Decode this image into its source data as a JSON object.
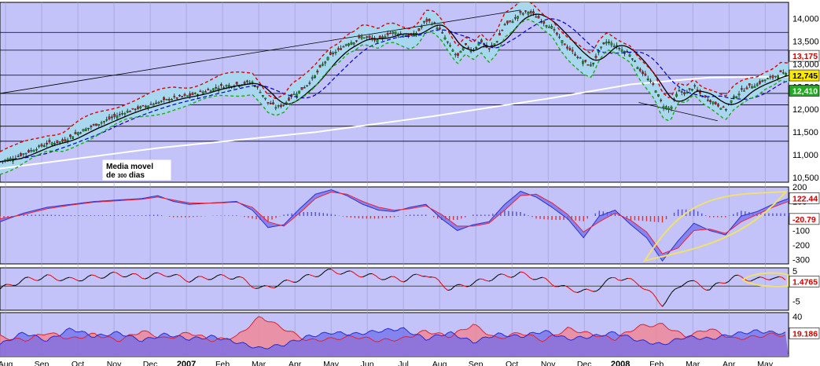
{
  "chart_data": [
    {
      "type": "line",
      "panel": "price",
      "y_axis_side": "right",
      "ylim": [
        10400,
        14350
      ],
      "y_ticks": [
        "14,000",
        "13,500",
        "13,000",
        "12,500",
        "12,000",
        "11,500",
        "11,000",
        "10,500"
      ],
      "y_tick_values": [
        14000,
        13500,
        13000,
        12500,
        12000,
        11500,
        11000,
        10500
      ],
      "months": [
        "Aug",
        "Sep",
        "Oct",
        "Nov",
        "Dec",
        "2007",
        "Feb",
        "Mar",
        "Apr",
        "May",
        "Jun",
        "Jul",
        "Aug",
        "Sep",
        "Oct",
        "Nov",
        "Dec",
        "2008",
        "Feb",
        "Mar",
        "Apr",
        "May"
      ],
      "horizontal_levels": [
        13690,
        13300,
        12750,
        12350,
        12100,
        11630,
        11300
      ],
      "trendline_black": {
        "start": [
          0,
          12350
        ],
        "end": [
          66,
          14180
        ]
      },
      "price_close": [
        [
          0,
          10850
        ],
        [
          2,
          10950
        ],
        [
          4,
          11100
        ],
        [
          6,
          11250
        ],
        [
          8,
          11300
        ],
        [
          10,
          11500
        ],
        [
          12,
          11650
        ],
        [
          14,
          11800
        ],
        [
          16,
          11950
        ],
        [
          18,
          12050
        ],
        [
          20,
          12150
        ],
        [
          22,
          12250
        ],
        [
          24,
          12300
        ],
        [
          26,
          12400
        ],
        [
          28,
          12500
        ],
        [
          30,
          12550
        ],
        [
          32,
          12600
        ],
        [
          33,
          12400
        ],
        [
          34,
          12150
        ],
        [
          35,
          12050
        ],
        [
          36,
          12100
        ],
        [
          37,
          12300
        ],
        [
          38,
          12400
        ],
        [
          39,
          12550
        ],
        [
          40,
          12750
        ],
        [
          41,
          13000
        ],
        [
          42,
          13200
        ],
        [
          43,
          13300
        ],
        [
          44,
          13450
        ],
        [
          45,
          13500
        ],
        [
          46,
          13600
        ],
        [
          47,
          13550
        ],
        [
          48,
          13500
        ],
        [
          49,
          13650
        ],
        [
          50,
          13700
        ],
        [
          51,
          13650
        ],
        [
          52,
          13600
        ],
        [
          53,
          13700
        ],
        [
          54,
          13950
        ],
        [
          55,
          13900
        ],
        [
          56,
          13700
        ],
        [
          57,
          13400
        ],
        [
          58,
          13150
        ],
        [
          59,
          13400
        ],
        [
          60,
          13300
        ],
        [
          61,
          13500
        ],
        [
          62,
          13300
        ],
        [
          63,
          13500
        ],
        [
          64,
          13850
        ],
        [
          65,
          13950
        ],
        [
          66,
          14100
        ],
        [
          67,
          14150
        ],
        [
          68,
          14050
        ],
        [
          69,
          13900
        ],
        [
          70,
          13800
        ],
        [
          71,
          13550
        ],
        [
          72,
          13350
        ],
        [
          73,
          13200
        ],
        [
          74,
          13050
        ],
        [
          75,
          12950
        ],
        [
          76,
          13300
        ],
        [
          77,
          13500
        ],
        [
          78,
          13400
        ],
        [
          79,
          13300
        ],
        [
          80,
          13200
        ],
        [
          81,
          12900
        ],
        [
          82,
          12700
        ],
        [
          83,
          12500
        ],
        [
          84,
          12100
        ],
        [
          85,
          12000
        ],
        [
          86,
          12400
        ],
        [
          87,
          12350
        ],
        [
          88,
          12500
        ],
        [
          89,
          12300
        ],
        [
          90,
          12200
        ],
        [
          91,
          12100
        ],
        [
          92,
          12000
        ],
        [
          93,
          12250
        ],
        [
          94,
          12400
        ],
        [
          95,
          12500
        ],
        [
          96,
          12550
        ],
        [
          97,
          12650
        ],
        [
          98,
          12700
        ],
        [
          99,
          12800
        ],
        [
          100,
          12750
        ]
      ],
      "series_names": [],
      "sma_200_label": "Media movel de 300 dias",
      "badges": [
        {
          "text": "13,175",
          "value": 13175,
          "color": "#d40000",
          "bg": "#ffffff"
        },
        {
          "text": "12,745",
          "value": 12745,
          "color": "#000000",
          "bg": "#ffe800"
        },
        {
          "text": "12,410",
          "value": 12410,
          "color": "#ffffff",
          "bg": "#22aa22"
        }
      ],
      "colors": {
        "background": "#c3c3f9",
        "band_fill": "#a9d7f0",
        "upper_band": "#e00000",
        "lower_band": "#1aaa1a",
        "sma_fast": "#000000",
        "sma_medium": "#0000cc",
        "sma_long": "#ffffff"
      }
    },
    {
      "type": "area",
      "panel": "macd",
      "y_axis_side": "right",
      "ylim": [
        -330,
        200
      ],
      "y_ticks": [
        "200",
        "100",
        "-100",
        "-200",
        "-300"
      ],
      "y_tick_values": [
        200,
        100,
        -100,
        -200,
        -300
      ],
      "badges": [
        {
          "text": "122.44",
          "value": 122.44,
          "color": "#d40000",
          "bg": "#ffffff"
        },
        {
          "text": "-20.79",
          "value": -20.79,
          "color": "#d40000",
          "bg": "#ffffff"
        }
      ],
      "macd_line": [
        [
          0,
          -40
        ],
        [
          3,
          20
        ],
        [
          6,
          60
        ],
        [
          9,
          80
        ],
        [
          12,
          100
        ],
        [
          15,
          110
        ],
        [
          18,
          120
        ],
        [
          20,
          140
        ],
        [
          22,
          100
        ],
        [
          24,
          80
        ],
        [
          27,
          90
        ],
        [
          30,
          100
        ],
        [
          32,
          40
        ],
        [
          34,
          -80
        ],
        [
          36,
          -60
        ],
        [
          38,
          50
        ],
        [
          40,
          150
        ],
        [
          42,
          180
        ],
        [
          44,
          140
        ],
        [
          46,
          80
        ],
        [
          48,
          40
        ],
        [
          50,
          30
        ],
        [
          52,
          60
        ],
        [
          54,
          80
        ],
        [
          56,
          -20
        ],
        [
          58,
          -100
        ],
        [
          60,
          -60
        ],
        [
          62,
          -40
        ],
        [
          64,
          80
        ],
        [
          66,
          170
        ],
        [
          68,
          130
        ],
        [
          70,
          60
        ],
        [
          72,
          -20
        ],
        [
          74,
          -150
        ],
        [
          76,
          0
        ],
        [
          78,
          40
        ],
        [
          80,
          -60
        ],
        [
          82,
          -150
        ],
        [
          84,
          -310
        ],
        [
          86,
          -170
        ],
        [
          88,
          -50
        ],
        [
          90,
          -100
        ],
        [
          92,
          -130
        ],
        [
          94,
          0
        ],
        [
          96,
          30
        ],
        [
          98,
          80
        ],
        [
          100,
          120
        ]
      ],
      "signal_line": [
        [
          0,
          -20
        ],
        [
          3,
          10
        ],
        [
          6,
          50
        ],
        [
          9,
          75
        ],
        [
          12,
          95
        ],
        [
          15,
          105
        ],
        [
          18,
          115
        ],
        [
          20,
          130
        ],
        [
          22,
          110
        ],
        [
          24,
          90
        ],
        [
          27,
          88
        ],
        [
          30,
          95
        ],
        [
          32,
          60
        ],
        [
          34,
          -40
        ],
        [
          36,
          -70
        ],
        [
          38,
          20
        ],
        [
          40,
          120
        ],
        [
          42,
          165
        ],
        [
          44,
          150
        ],
        [
          46,
          100
        ],
        [
          48,
          60
        ],
        [
          50,
          40
        ],
        [
          52,
          50
        ],
        [
          54,
          70
        ],
        [
          56,
          10
        ],
        [
          58,
          -70
        ],
        [
          60,
          -70
        ],
        [
          62,
          -50
        ],
        [
          64,
          40
        ],
        [
          66,
          140
        ],
        [
          68,
          150
        ],
        [
          70,
          90
        ],
        [
          72,
          10
        ],
        [
          74,
          -110
        ],
        [
          76,
          -40
        ],
        [
          78,
          20
        ],
        [
          80,
          -30
        ],
        [
          82,
          -110
        ],
        [
          84,
          -260
        ],
        [
          86,
          -220
        ],
        [
          88,
          -100
        ],
        [
          90,
          -90
        ],
        [
          92,
          -120
        ],
        [
          94,
          -40
        ],
        [
          96,
          10
        ],
        [
          98,
          60
        ],
        [
          100,
          100
        ]
      ],
      "colors": {
        "background": "#c3c3f9",
        "macd_fill": "#7070ee",
        "signal_fill": "#e88090",
        "hist_pos": "#5050dd",
        "hist_neg": "#dd3333",
        "highlight": "#f0e070"
      }
    },
    {
      "type": "line",
      "panel": "oscillator",
      "y_axis_side": "right",
      "ylim": [
        -8,
        6
      ],
      "y_ticks": [
        "5",
        "-5"
      ],
      "y_tick_values": [
        5,
        -5
      ],
      "badges": [
        {
          "text": "1.4765",
          "value": 1.4765,
          "color": "#d40000",
          "bg": "#ffffff"
        }
      ],
      "values": [
        [
          0,
          -1
        ],
        [
          3,
          2
        ],
        [
          6,
          3
        ],
        [
          9,
          2
        ],
        [
          12,
          3
        ],
        [
          15,
          4
        ],
        [
          18,
          3
        ],
        [
          21,
          4
        ],
        [
          24,
          2
        ],
        [
          27,
          3
        ],
        [
          30,
          3
        ],
        [
          33,
          -1
        ],
        [
          36,
          1
        ],
        [
          39,
          3
        ],
        [
          42,
          5
        ],
        [
          45,
          4
        ],
        [
          48,
          3
        ],
        [
          51,
          2
        ],
        [
          54,
          4
        ],
        [
          57,
          -1
        ],
        [
          60,
          1
        ],
        [
          63,
          3
        ],
        [
          66,
          4
        ],
        [
          69,
          2
        ],
        [
          72,
          -1
        ],
        [
          75,
          -2
        ],
        [
          78,
          3
        ],
        [
          81,
          1
        ],
        [
          84,
          -6
        ],
        [
          87,
          2
        ],
        [
          90,
          -1
        ],
        [
          93,
          3
        ],
        [
          96,
          2
        ],
        [
          98,
          3
        ],
        [
          100,
          1.5
        ]
      ],
      "colors": {
        "background": "#c3c3f9",
        "rising": "#000000",
        "falling": "#ee0000",
        "highlight": "#f0e070"
      }
    },
    {
      "type": "area",
      "panel": "volume_oscillator",
      "y_axis_side": "right",
      "ylim": [
        -10,
        45
      ],
      "y_ticks": [
        "40"
      ],
      "y_tick_values": [
        40
      ],
      "badges": [
        {
          "text": "19.186",
          "value": 19.186,
          "color": "#d40000",
          "bg": "#ffffff"
        }
      ],
      "blue_series": [
        [
          0,
          5
        ],
        [
          3,
          20
        ],
        [
          6,
          10
        ],
        [
          9,
          25
        ],
        [
          12,
          15
        ],
        [
          15,
          20
        ],
        [
          18,
          10
        ],
        [
          21,
          18
        ],
        [
          24,
          12
        ],
        [
          27,
          15
        ],
        [
          30,
          8
        ],
        [
          33,
          0
        ],
        [
          36,
          5
        ],
        [
          39,
          15
        ],
        [
          42,
          20
        ],
        [
          45,
          18
        ],
        [
          48,
          22
        ],
        [
          51,
          25
        ],
        [
          54,
          12
        ],
        [
          57,
          20
        ],
        [
          60,
          8
        ],
        [
          63,
          18
        ],
        [
          66,
          15
        ],
        [
          69,
          22
        ],
        [
          72,
          12
        ],
        [
          75,
          15
        ],
        [
          78,
          20
        ],
        [
          81,
          10
        ],
        [
          84,
          5
        ],
        [
          87,
          15
        ],
        [
          90,
          12
        ],
        [
          93,
          18
        ],
        [
          96,
          22
        ],
        [
          98,
          20
        ],
        [
          100,
          19
        ]
      ],
      "red_series": [
        [
          0,
          15
        ],
        [
          3,
          10
        ],
        [
          6,
          20
        ],
        [
          9,
          12
        ],
        [
          12,
          18
        ],
        [
          15,
          10
        ],
        [
          18,
          22
        ],
        [
          21,
          12
        ],
        [
          24,
          20
        ],
        [
          27,
          10
        ],
        [
          30,
          15
        ],
        [
          33,
          40
        ],
        [
          36,
          25
        ],
        [
          39,
          10
        ],
        [
          42,
          12
        ],
        [
          45,
          15
        ],
        [
          48,
          10
        ],
        [
          51,
          12
        ],
        [
          54,
          22
        ],
        [
          57,
          15
        ],
        [
          60,
          30
        ],
        [
          63,
          12
        ],
        [
          66,
          20
        ],
        [
          69,
          10
        ],
        [
          72,
          25
        ],
        [
          75,
          18
        ],
        [
          78,
          12
        ],
        [
          81,
          28
        ],
        [
          84,
          30
        ],
        [
          87,
          15
        ],
        [
          90,
          25
        ],
        [
          93,
          12
        ],
        [
          96,
          15
        ],
        [
          98,
          18
        ],
        [
          100,
          16
        ]
      ],
      "colors": {
        "background": "#c3c3f9",
        "blue_fill": "#6a6aee",
        "red_fill": "#ee8899"
      }
    }
  ]
}
